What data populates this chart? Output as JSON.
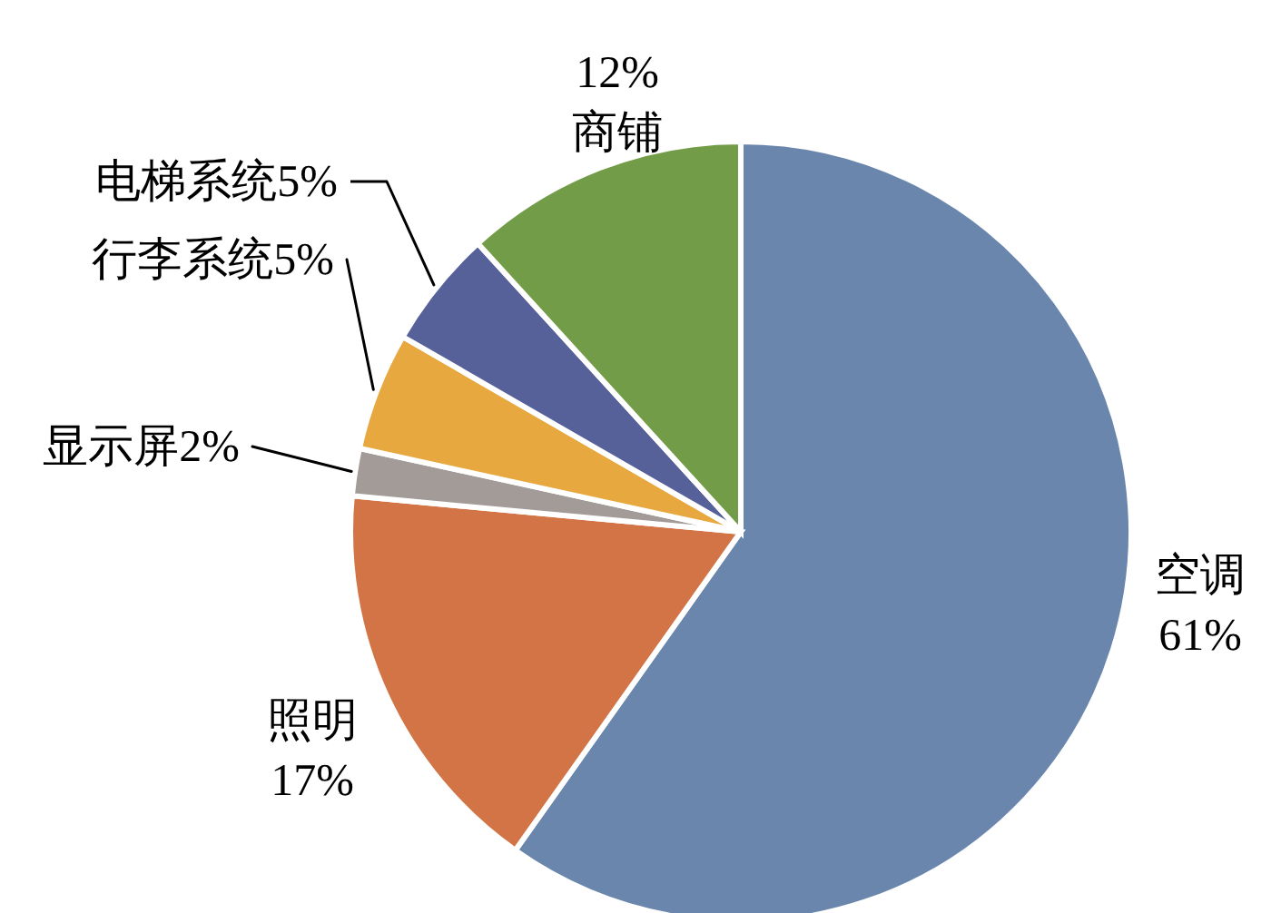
{
  "chart_data": {
    "type": "pie",
    "categories": [
      "空调",
      "照明",
      "显示屏",
      "行李系统",
      "电梯系统",
      "商铺"
    ],
    "values": [
      61,
      17,
      2,
      5,
      5,
      12
    ],
    "colors": [
      "#6a86ad",
      "#d27445",
      "#a29b98",
      "#e8a840",
      "#56619a",
      "#739c49"
    ],
    "value_labels": [
      "61%",
      "17%",
      "2%",
      "5%",
      "5%",
      "12%"
    ]
  }
}
